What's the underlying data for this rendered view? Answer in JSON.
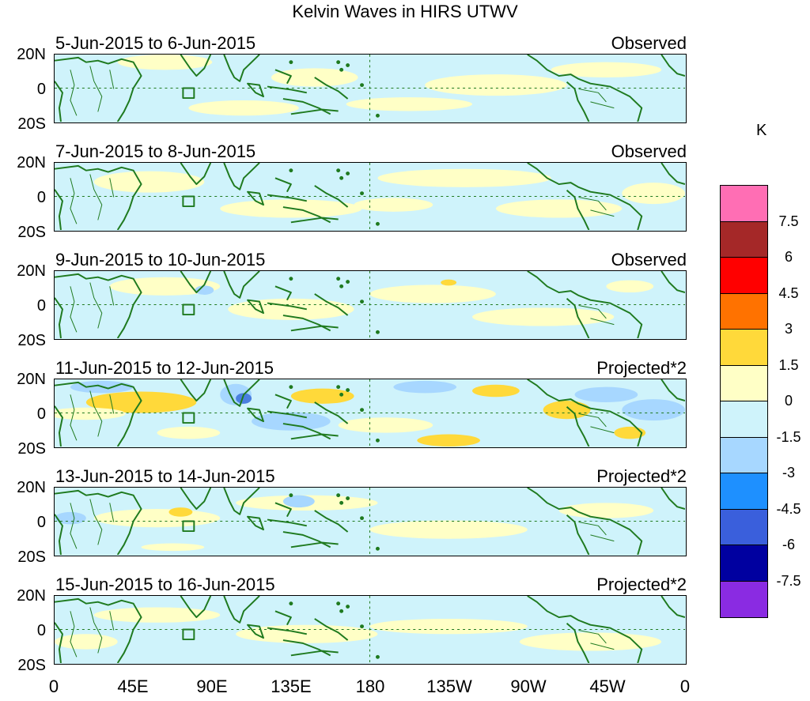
{
  "title": "Kelvin Waves in HIRS UTWV",
  "panels": [
    {
      "date_range": "5-Jun-2015 to 6-Jun-2015",
      "kind": "Observed"
    },
    {
      "date_range": "7-Jun-2015 to 8-Jun-2015",
      "kind": "Observed"
    },
    {
      "date_range": "9-Jun-2015 to 10-Jun-2015",
      "kind": "Observed"
    },
    {
      "date_range": "11-Jun-2015 to 12-Jun-2015",
      "kind": "Projected*2"
    },
    {
      "date_range": "13-Jun-2015 to 14-Jun-2015",
      "kind": "Projected*2"
    },
    {
      "date_range": "15-Jun-2015 to 16-Jun-2015",
      "kind": "Projected*2"
    }
  ],
  "y_axis": {
    "top": "20N",
    "mid": "0",
    "bottom": "20S"
  },
  "x_axis": [
    "0",
    "45E",
    "90E",
    "135E",
    "180",
    "135W",
    "90W",
    "45W",
    "0"
  ],
  "colorbar": {
    "unit": "K",
    "colors": [
      "#ff6eb4",
      "#a52828",
      "#ff0000",
      "#ff7200",
      "#ffd93a",
      "#ffffc6",
      "#cff3fb",
      "#a7d7ff",
      "#1e90ff",
      "#3a5fdc",
      "#0000a0",
      "#8a2be2"
    ],
    "labels": [
      "7.5",
      "6",
      "4.5",
      "3",
      "1.5",
      "0",
      "-1.5",
      "-3",
      "-4.5",
      "-6",
      "-7.5"
    ]
  },
  "map_colors": {
    "land": "#1f7a1f",
    "positive": "#ffffc6",
    "strong_positive": "#ffd93a",
    "negative": "#cff3fb",
    "strong_negative": "#a7d7ff",
    "very_strong_negative": "#4a7fe0"
  }
}
